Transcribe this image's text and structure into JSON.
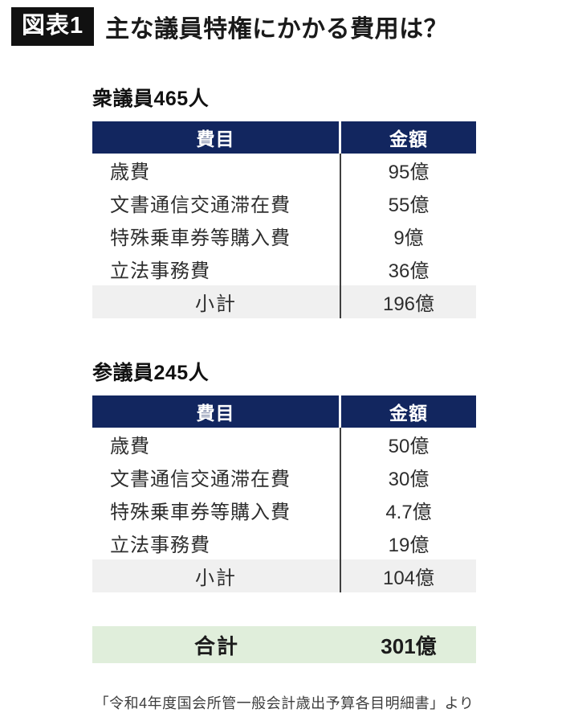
{
  "header": {
    "badge": "図表1",
    "title": "主な議員特権にかかる費用は？"
  },
  "columns": {
    "item": "費目",
    "amount": "金額"
  },
  "tables": [
    {
      "section_title": "衆議員465人",
      "rows": [
        {
          "item": "歳費",
          "amount": "95億"
        },
        {
          "item": "文書通信交通滞在費",
          "amount": "55億"
        },
        {
          "item": "特殊乗車券等購入費",
          "amount": "9億"
        },
        {
          "item": "立法事務費",
          "amount": "36億"
        }
      ],
      "subtotal": {
        "label": "小計",
        "amount": "196億"
      }
    },
    {
      "section_title": "参議員245人",
      "rows": [
        {
          "item": "歳費",
          "amount": "50億"
        },
        {
          "item": "文書通信交通滞在費",
          "amount": "30億"
        },
        {
          "item": "特殊乗車券等購入費",
          "amount": "4.7億"
        },
        {
          "item": "立法事務費",
          "amount": "19億"
        }
      ],
      "subtotal": {
        "label": "小計",
        "amount": "104億"
      }
    }
  ],
  "total": {
    "label": "合計",
    "amount": "301億"
  },
  "footnote": "「令和4年度国会所管一般会計歳出予算各目明細書」より",
  "colors": {
    "header_navy": "#12265f",
    "subtotal_gray": "#f0f0f0",
    "total_green": "#e0eedb",
    "badge_black": "#111111"
  },
  "chart_data": {
    "type": "table",
    "title": "主な議員特権にかかる費用は？",
    "unit": "億円",
    "tables": [
      {
        "group": "衆議員",
        "members": 465,
        "columns": [
          "費目",
          "金額"
        ],
        "items": [
          "歳費",
          "文書通信交通滞在費",
          "特殊乗車券等購入費",
          "立法事務費"
        ],
        "values": [
          95,
          55,
          9,
          36
        ],
        "subtotal_label": "小計",
        "subtotal": 196
      },
      {
        "group": "参議員",
        "members": 245,
        "columns": [
          "費目",
          "金額"
        ],
        "items": [
          "歳費",
          "文書通信交通滞在費",
          "特殊乗車券等購入費",
          "立法事務費"
        ],
        "values": [
          50,
          30,
          4.7,
          19
        ],
        "subtotal_label": "小計",
        "subtotal": 104
      }
    ],
    "total_label": "合計",
    "total": 301,
    "source": "「令和4年度国会所管一般会計歳出予算各目明細書」より"
  }
}
